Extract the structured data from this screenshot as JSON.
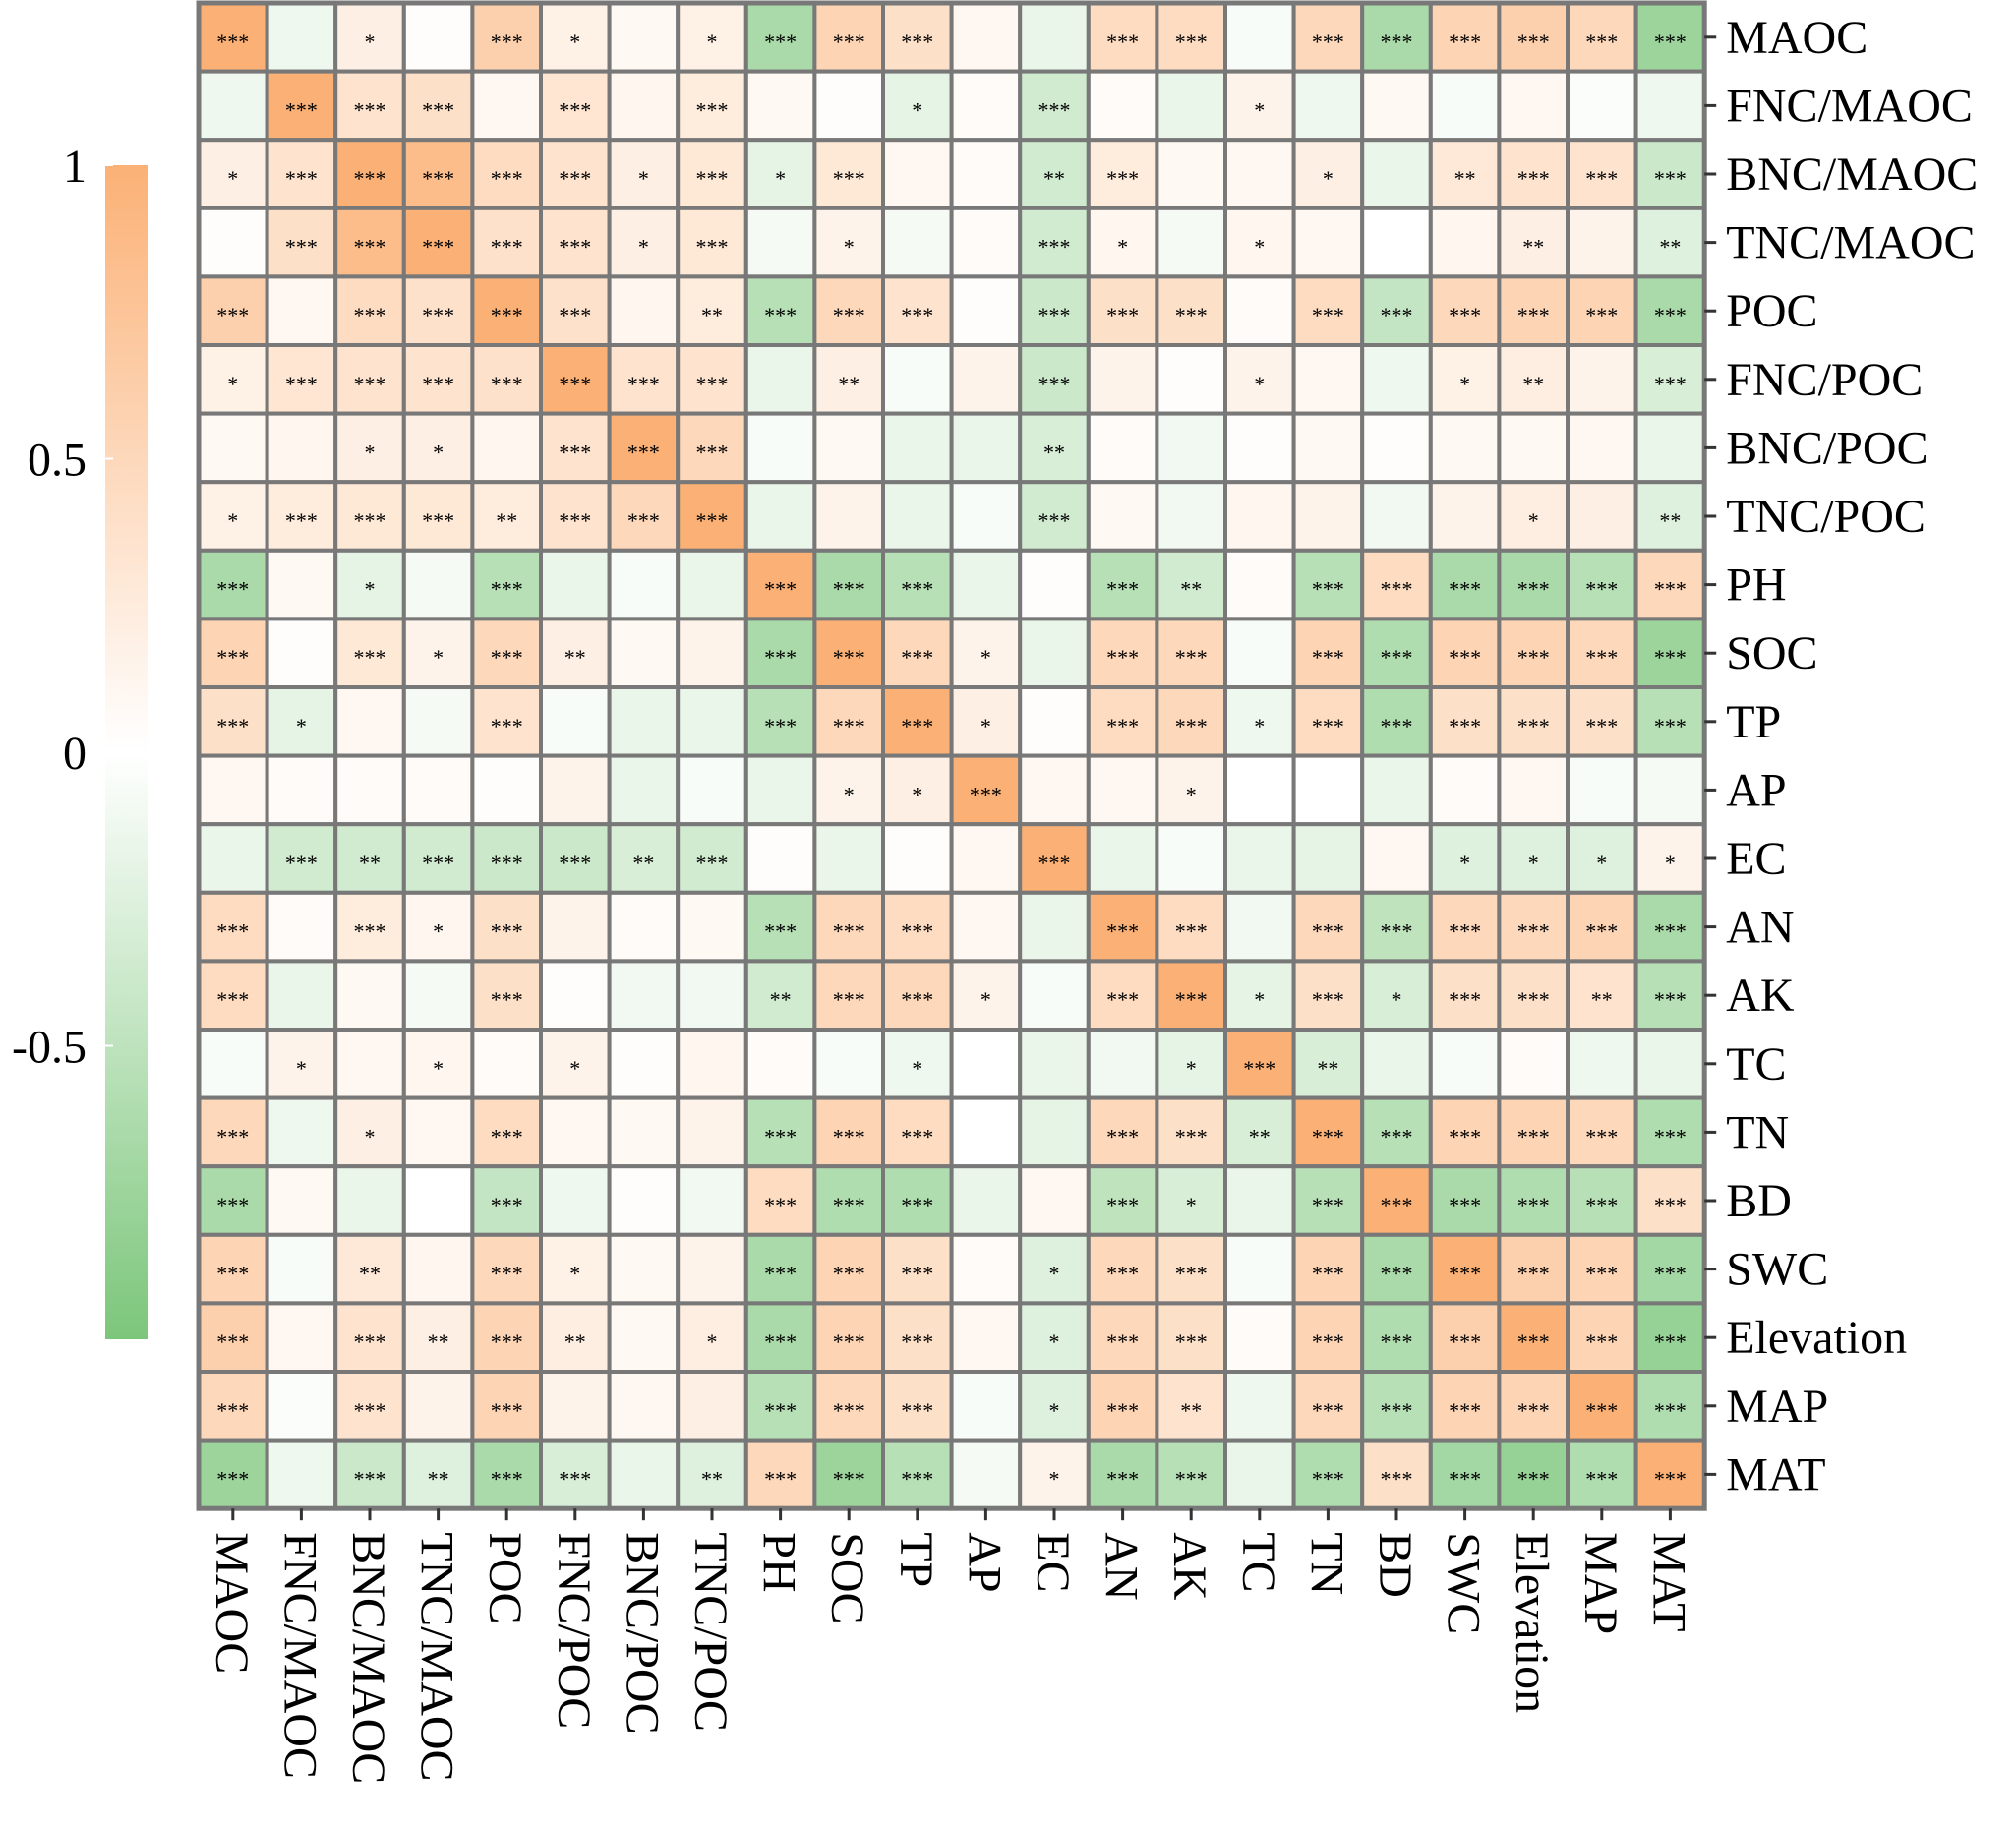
{
  "chart_data": {
    "type": "heatmap",
    "title": "",
    "variables": [
      "MAOC",
      "FNC/MAOC",
      "BNC/MAOC",
      "TNC/MAOC",
      "POC",
      "FNC/POC",
      "BNC/POC",
      "TNC/POC",
      "PH",
      "SOC",
      "TP",
      "AP",
      "EC",
      "AN",
      "AK",
      "TC",
      "TN",
      "BD",
      "SWC",
      "Elevation",
      "MAP",
      "MAT"
    ],
    "rows": [
      "MAOC",
      "FNC/MAOC",
      "BNC/MAOC",
      "TNC/MAOC",
      "POC",
      "FNC/POC",
      "BNC/POC",
      "TNC/POC",
      "PH",
      "SOC",
      "TP",
      "AP",
      "EC",
      "AN",
      "AK",
      "TC",
      "TN",
      "BD",
      "SWC",
      "Elevation",
      "MAP",
      "MAT"
    ],
    "columns": [
      "MAOC",
      "FNC/MAOC",
      "BNC/MAOC",
      "TNC/MAOC",
      "POC",
      "FNC/POC",
      "BNC/POC",
      "TNC/POC",
      "PH",
      "SOC",
      "TP",
      "AP",
      "EC",
      "AN",
      "AK",
      "TC",
      "TN",
      "BD",
      "SWC",
      "Elevation",
      "MAP",
      "MAT"
    ],
    "values": [
      [
        1.0,
        -0.12,
        0.2,
        0.02,
        0.6,
        0.18,
        0.08,
        0.18,
        -0.65,
        0.55,
        0.4,
        0.1,
        -0.15,
        0.45,
        0.45,
        -0.05,
        0.5,
        -0.65,
        0.55,
        0.6,
        0.5,
        -0.75
      ],
      [
        -0.12,
        1.0,
        0.35,
        0.4,
        0.1,
        0.32,
        0.12,
        0.25,
        0.08,
        0.02,
        -0.2,
        0.05,
        -0.35,
        0.05,
        -0.15,
        0.15,
        -0.12,
        0.08,
        -0.05,
        0.1,
        -0.03,
        -0.12
      ],
      [
        0.2,
        0.35,
        1.0,
        0.85,
        0.45,
        0.35,
        0.2,
        0.3,
        -0.2,
        0.3,
        0.1,
        0.05,
        -0.35,
        0.25,
        0.08,
        0.1,
        0.2,
        -0.15,
        0.28,
        0.35,
        0.35,
        -0.4
      ],
      [
        0.02,
        0.4,
        0.85,
        1.0,
        0.38,
        0.35,
        0.2,
        0.3,
        -0.08,
        0.15,
        -0.08,
        0.05,
        -0.35,
        0.12,
        -0.08,
        0.12,
        0.1,
        0.0,
        0.12,
        0.2,
        0.15,
        -0.25
      ],
      [
        0.6,
        0.1,
        0.45,
        0.38,
        1.0,
        0.38,
        0.12,
        0.25,
        -0.55,
        0.5,
        0.35,
        0.03,
        -0.4,
        0.4,
        0.4,
        0.05,
        0.45,
        -0.45,
        0.5,
        0.55,
        0.55,
        -0.65
      ],
      [
        0.18,
        0.32,
        0.35,
        0.35,
        0.38,
        1.0,
        0.35,
        0.35,
        -0.15,
        0.2,
        -0.05,
        0.15,
        -0.4,
        0.15,
        0.02,
        0.15,
        0.1,
        -0.12,
        0.18,
        0.22,
        0.15,
        -0.3
      ],
      [
        0.08,
        0.12,
        0.2,
        0.2,
        0.12,
        0.35,
        1.0,
        0.5,
        -0.05,
        0.08,
        -0.15,
        -0.15,
        -0.3,
        0.05,
        -0.1,
        0.02,
        0.08,
        0.02,
        0.08,
        0.08,
        0.1,
        -0.15
      ],
      [
        0.18,
        0.25,
        0.3,
        0.3,
        0.25,
        0.35,
        0.5,
        1.0,
        -0.15,
        0.15,
        -0.15,
        -0.05,
        -0.35,
        0.08,
        -0.1,
        0.12,
        0.15,
        -0.1,
        0.15,
        0.22,
        0.2,
        -0.25
      ],
      [
        -0.65,
        0.08,
        -0.2,
        -0.08,
        -0.55,
        -0.15,
        -0.05,
        -0.15,
        1.0,
        -0.65,
        -0.55,
        -0.15,
        0.02,
        -0.55,
        -0.35,
        0.05,
        -0.55,
        0.45,
        -0.65,
        -0.65,
        -0.55,
        0.5
      ],
      [
        0.55,
        0.02,
        0.3,
        0.15,
        0.5,
        0.2,
        0.08,
        0.15,
        -0.65,
        1.0,
        0.5,
        0.15,
        -0.15,
        0.5,
        0.5,
        -0.05,
        0.55,
        -0.6,
        0.55,
        0.55,
        0.5,
        -0.75
      ],
      [
        0.4,
        -0.2,
        0.1,
        -0.08,
        0.35,
        -0.05,
        -0.15,
        -0.15,
        -0.55,
        0.5,
        1.0,
        0.2,
        0.03,
        0.45,
        0.5,
        -0.12,
        0.45,
        -0.6,
        0.4,
        0.4,
        0.4,
        -0.55
      ],
      [
        0.1,
        0.05,
        0.05,
        0.05,
        0.03,
        0.15,
        -0.15,
        -0.05,
        -0.15,
        0.15,
        0.2,
        1.0,
        0.1,
        0.1,
        0.15,
        0.0,
        0.0,
        -0.15,
        0.05,
        0.1,
        -0.05,
        -0.08
      ],
      [
        -0.15,
        -0.35,
        -0.35,
        -0.35,
        -0.4,
        -0.4,
        -0.3,
        -0.35,
        0.02,
        -0.15,
        0.03,
        0.1,
        1.0,
        -0.15,
        -0.05,
        -0.15,
        -0.2,
        0.1,
        -0.25,
        -0.25,
        -0.25,
        0.15
      ],
      [
        0.45,
        0.05,
        0.25,
        0.12,
        0.4,
        0.15,
        0.05,
        0.08,
        -0.55,
        0.5,
        0.45,
        0.1,
        -0.15,
        1.0,
        0.45,
        -0.1,
        0.5,
        -0.5,
        0.5,
        0.5,
        0.55,
        -0.65
      ],
      [
        0.45,
        -0.15,
        0.08,
        -0.08,
        0.4,
        0.02,
        -0.1,
        -0.1,
        -0.35,
        0.5,
        0.5,
        0.15,
        -0.05,
        0.45,
        1.0,
        -0.2,
        0.4,
        -0.3,
        0.4,
        0.4,
        0.35,
        -0.55
      ],
      [
        -0.05,
        0.15,
        0.1,
        0.12,
        0.05,
        0.15,
        0.02,
        0.12,
        0.05,
        -0.05,
        -0.12,
        0.0,
        -0.15,
        -0.1,
        -0.2,
        1.0,
        -0.3,
        -0.15,
        -0.05,
        0.05,
        -0.12,
        -0.15
      ],
      [
        0.5,
        -0.12,
        0.2,
        0.1,
        0.45,
        0.1,
        0.08,
        0.15,
        -0.55,
        0.55,
        0.45,
        0.0,
        -0.2,
        0.5,
        0.4,
        -0.3,
        1.0,
        -0.55,
        0.55,
        0.55,
        0.5,
        -0.6
      ],
      [
        -0.65,
        0.08,
        -0.15,
        0.0,
        -0.45,
        -0.12,
        0.02,
        -0.1,
        0.45,
        -0.6,
        -0.6,
        -0.15,
        0.1,
        -0.5,
        -0.3,
        -0.15,
        -0.55,
        1.0,
        -0.65,
        -0.6,
        -0.55,
        0.4
      ],
      [
        0.55,
        -0.05,
        0.28,
        0.12,
        0.5,
        0.18,
        0.08,
        0.15,
        -0.65,
        0.55,
        0.4,
        0.05,
        -0.25,
        0.5,
        0.4,
        -0.05,
        0.55,
        -0.65,
        1.0,
        0.6,
        0.55,
        -0.7
      ],
      [
        0.6,
        0.1,
        0.35,
        0.2,
        0.55,
        0.22,
        0.08,
        0.22,
        -0.65,
        0.55,
        0.4,
        0.1,
        -0.25,
        0.5,
        0.4,
        0.05,
        0.55,
        -0.6,
        0.6,
        1.0,
        0.55,
        -0.8
      ],
      [
        0.5,
        -0.03,
        0.35,
        0.15,
        0.55,
        0.15,
        0.1,
        0.2,
        -0.55,
        0.5,
        0.4,
        -0.05,
        -0.25,
        0.55,
        0.35,
        -0.12,
        0.5,
        -0.55,
        0.55,
        0.55,
        1.0,
        -0.6
      ],
      [
        -0.75,
        -0.12,
        -0.4,
        -0.25,
        -0.65,
        -0.3,
        -0.15,
        -0.25,
        0.5,
        -0.75,
        -0.55,
        -0.08,
        0.15,
        -0.65,
        -0.55,
        -0.15,
        -0.6,
        0.4,
        -0.7,
        -0.8,
        -0.6,
        1.0
      ]
    ],
    "significance": [
      [
        "***",
        "",
        "*",
        "",
        "***",
        "*",
        "",
        "*",
        "***",
        "***",
        "***",
        "",
        "",
        "***",
        "***",
        "",
        "***",
        "***",
        "***",
        "***",
        "***",
        "***"
      ],
      [
        "",
        "***",
        "***",
        "***",
        "",
        "***",
        "",
        "***",
        "",
        "",
        "*",
        "",
        "***",
        "",
        "",
        "*",
        "",
        "",
        "",
        "",
        "",
        ""
      ],
      [
        "*",
        "***",
        "***",
        "***",
        "***",
        "***",
        "*",
        "***",
        "*",
        "***",
        "",
        "",
        "**",
        "***",
        "",
        "",
        "*",
        "",
        "**",
        "***",
        "***",
        "***"
      ],
      [
        "",
        "***",
        "***",
        "***",
        "***",
        "***",
        "*",
        "***",
        "",
        "*",
        "",
        "",
        "***",
        "*",
        "",
        "*",
        "",
        "",
        "",
        "**",
        "",
        "**"
      ],
      [
        "***",
        "",
        "***",
        "***",
        "***",
        "***",
        "",
        "**",
        "***",
        "***",
        "***",
        "",
        "***",
        "***",
        "***",
        "",
        "***",
        "***",
        "***",
        "***",
        "***",
        "***"
      ],
      [
        "*",
        "***",
        "***",
        "***",
        "***",
        "***",
        "***",
        "***",
        "",
        "**",
        "",
        "",
        "***",
        "",
        "",
        "*",
        "",
        "",
        "*",
        "**",
        "",
        "***"
      ],
      [
        "",
        "",
        "*",
        "*",
        "",
        "***",
        "***",
        "***",
        "",
        "",
        "",
        "",
        "**",
        "",
        "",
        "",
        "",
        "",
        "",
        "",
        "",
        ""
      ],
      [
        "*",
        "***",
        "***",
        "***",
        "**",
        "***",
        "***",
        "***",
        "",
        "",
        "",
        "",
        "***",
        "",
        "",
        "",
        "",
        "",
        "",
        "*",
        "",
        "**"
      ],
      [
        "***",
        "",
        "*",
        "",
        "***",
        "",
        "",
        "",
        "***",
        "***",
        "***",
        "",
        "",
        "***",
        "**",
        "",
        "***",
        "***",
        "***",
        "***",
        "***",
        "***"
      ],
      [
        "***",
        "",
        "***",
        "*",
        "***",
        "**",
        "",
        "",
        "***",
        "***",
        "***",
        "*",
        "",
        "***",
        "***",
        "",
        "***",
        "***",
        "***",
        "***",
        "***",
        "***"
      ],
      [
        "***",
        "*",
        "",
        "",
        "***",
        "",
        "",
        "",
        "***",
        "***",
        "***",
        "*",
        "",
        "***",
        "***",
        "*",
        "***",
        "***",
        "***",
        "***",
        "***",
        "***"
      ],
      [
        "",
        "",
        "",
        "",
        "",
        "",
        "",
        "",
        "",
        "*",
        "*",
        "***",
        "",
        "",
        "*",
        "",
        "",
        "",
        "",
        "",
        "",
        ""
      ],
      [
        "",
        "***",
        "**",
        "***",
        "***",
        "***",
        "**",
        "***",
        "",
        "",
        "",
        "",
        "***",
        "",
        "",
        "",
        "",
        "",
        "*",
        "*",
        "*",
        "*"
      ],
      [
        "***",
        "",
        "***",
        "*",
        "***",
        "",
        "",
        "",
        "***",
        "***",
        "***",
        "",
        "",
        "***",
        "***",
        "",
        "***",
        "***",
        "***",
        "***",
        "***",
        "***"
      ],
      [
        "***",
        "",
        "",
        "",
        "***",
        "",
        "",
        "",
        "**",
        "***",
        "***",
        "*",
        "",
        "***",
        "***",
        "*",
        "***",
        "*",
        "***",
        "***",
        "**",
        "***"
      ],
      [
        "",
        "*",
        "",
        "*",
        "",
        "*",
        "",
        "",
        "",
        "",
        "*",
        "",
        "",
        "",
        "*",
        "***",
        "**",
        "",
        "",
        "",
        "",
        ""
      ],
      [
        "***",
        "",
        "*",
        "",
        "***",
        "",
        "",
        "",
        "***",
        "***",
        "***",
        "",
        "",
        "***",
        "***",
        "**",
        "***",
        "***",
        "***",
        "***",
        "***",
        "***"
      ],
      [
        "***",
        "",
        "",
        "",
        "***",
        "",
        "",
        "",
        "***",
        "***",
        "***",
        "",
        "",
        "***",
        "*",
        "",
        "***",
        "***",
        "***",
        "***",
        "***",
        "***"
      ],
      [
        "***",
        "",
        "**",
        "",
        "***",
        "*",
        "",
        "",
        "***",
        "***",
        "***",
        "",
        "*",
        "***",
        "***",
        "",
        "***",
        "***",
        "***",
        "***",
        "***",
        "***"
      ],
      [
        "***",
        "",
        "***",
        "**",
        "***",
        "**",
        "",
        "*",
        "***",
        "***",
        "***",
        "",
        "*",
        "***",
        "***",
        "",
        "***",
        "***",
        "***",
        "***",
        "***",
        "***"
      ],
      [
        "***",
        "",
        "***",
        "",
        "***",
        "",
        "",
        "",
        "***",
        "***",
        "***",
        "",
        "*",
        "***",
        "**",
        "",
        "***",
        "***",
        "***",
        "***",
        "***",
        "***"
      ],
      [
        "***",
        "",
        "***",
        "**",
        "***",
        "***",
        "",
        "**",
        "***",
        "***",
        "***",
        "",
        "*",
        "***",
        "***",
        "",
        "***",
        "***",
        "***",
        "***",
        "***",
        "***"
      ]
    ],
    "colorbar": {
      "range": [
        -1,
        1
      ],
      "ticks": [
        1,
        0.5,
        0,
        -0.5
      ],
      "tick_labels": [
        "1",
        "0.5",
        "0",
        "-0.5"
      ],
      "colors": {
        "positive": "#FBB176",
        "zero": "#FFFFFF",
        "negative": "#7CC67B"
      },
      "position": "left"
    },
    "colors": {
      "cell_border": "#787878",
      "tick": "#333333"
    }
  }
}
